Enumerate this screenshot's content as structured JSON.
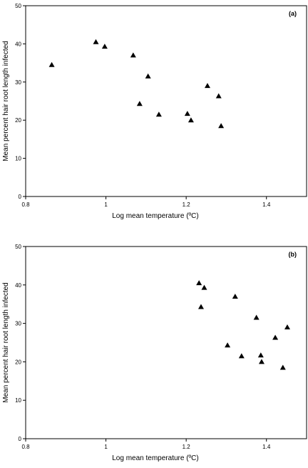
{
  "chart_data": [
    {
      "type": "scatter",
      "panel_label": "(a)",
      "xlabel": "Log mean temperature (ºC)",
      "ylabel": "Mean percent hair root length infected",
      "xlim": [
        0.8,
        1.5
      ],
      "ylim": [
        0,
        50
      ],
      "xticks": [
        "0.8",
        "1",
        "1.2",
        "1.4"
      ],
      "yticks": [
        "0",
        "10",
        "20",
        "30",
        "40",
        "50"
      ],
      "marker": "triangle",
      "points": [
        {
          "x": 0.865,
          "y": 34.5
        },
        {
          "x": 0.975,
          "y": 40.5
        },
        {
          "x": 0.997,
          "y": 39.3
        },
        {
          "x": 1.068,
          "y": 37.0
        },
        {
          "x": 1.084,
          "y": 24.3
        },
        {
          "x": 1.105,
          "y": 31.5
        },
        {
          "x": 1.132,
          "y": 21.5
        },
        {
          "x": 1.203,
          "y": 21.7
        },
        {
          "x": 1.212,
          "y": 20.0
        },
        {
          "x": 1.253,
          "y": 29.0
        },
        {
          "x": 1.281,
          "y": 26.3
        },
        {
          "x": 1.287,
          "y": 18.5
        }
      ]
    },
    {
      "type": "scatter",
      "panel_label": "(b)",
      "xlabel": "Log mean temperature (ºC)",
      "ylabel": "Mean percent hair root length infected",
      "xlim": [
        0.8,
        1.5
      ],
      "ylim": [
        0,
        50
      ],
      "xticks": [
        "0.8",
        "1",
        "1.2",
        "1.4"
      ],
      "yticks": [
        "0",
        "10",
        "20",
        "30",
        "40",
        "50"
      ],
      "marker": "triangle",
      "points": [
        {
          "x": 1.232,
          "y": 40.5
        },
        {
          "x": 1.237,
          "y": 34.3
        },
        {
          "x": 1.245,
          "y": 39.3
        },
        {
          "x": 1.303,
          "y": 24.3
        },
        {
          "x": 1.322,
          "y": 37.0
        },
        {
          "x": 1.338,
          "y": 21.5
        },
        {
          "x": 1.375,
          "y": 31.5
        },
        {
          "x": 1.386,
          "y": 21.7
        },
        {
          "x": 1.388,
          "y": 20.0
        },
        {
          "x": 1.422,
          "y": 26.3
        },
        {
          "x": 1.441,
          "y": 18.5
        },
        {
          "x": 1.452,
          "y": 29.0
        }
      ]
    }
  ]
}
